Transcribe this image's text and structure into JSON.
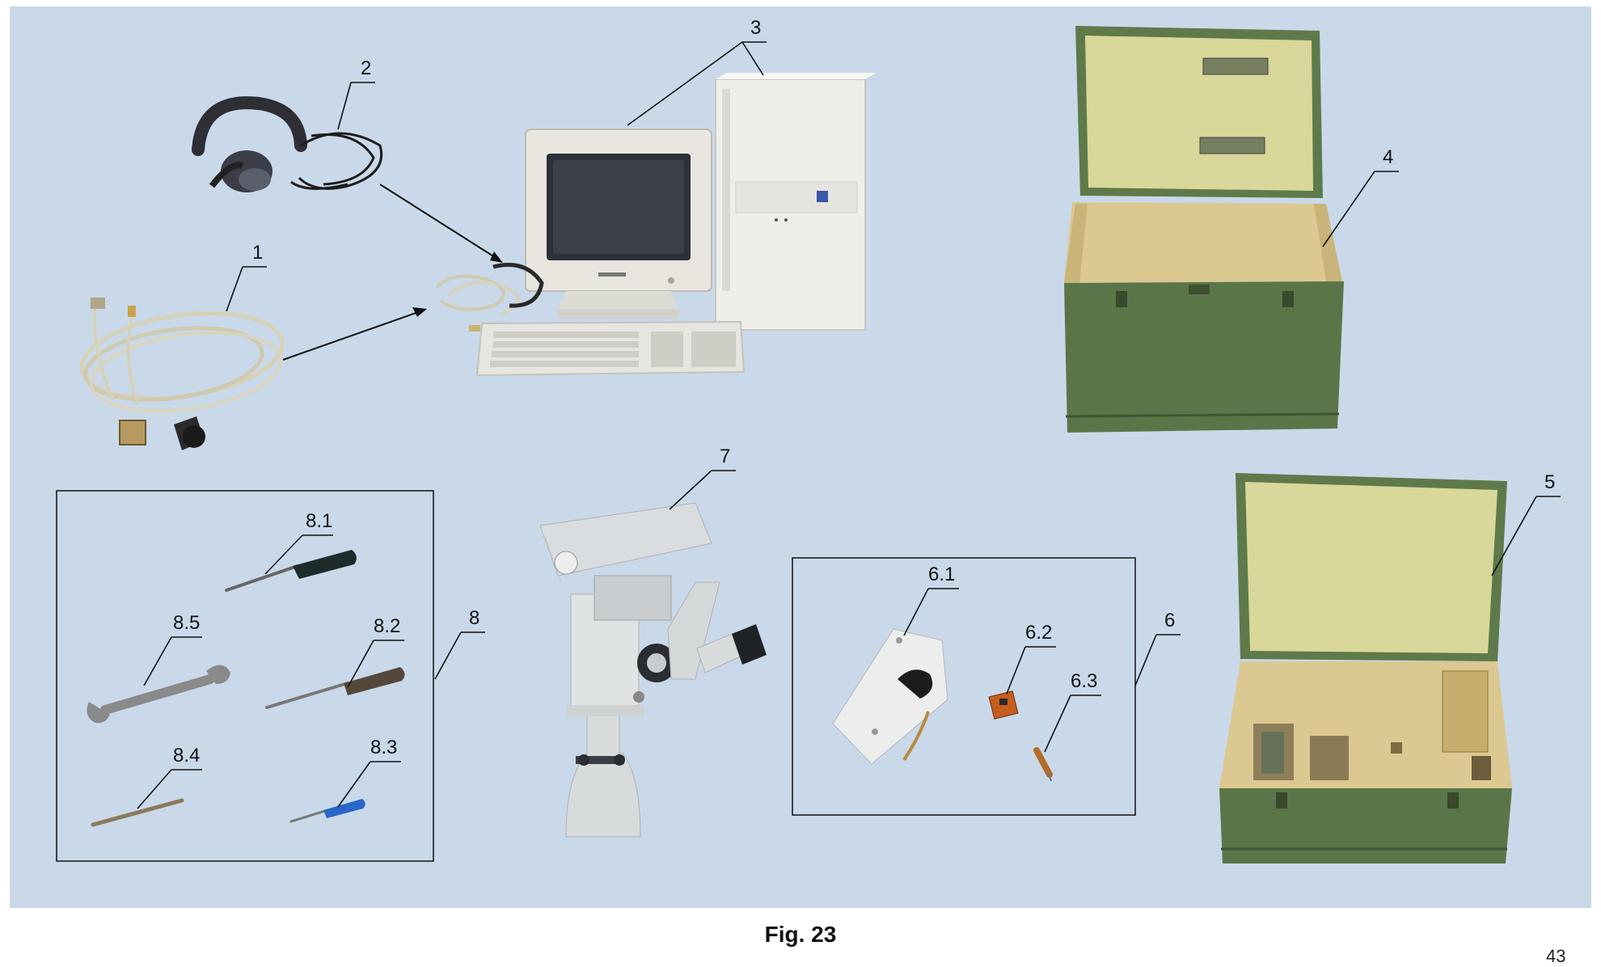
{
  "callouts": {
    "c1": "1",
    "c2": "2",
    "c3": "3",
    "c4": "4",
    "c5": "5",
    "c6": "6",
    "c6_1": "6.1",
    "c6_2": "6.2",
    "c6_3": "6.3",
    "c7": "7",
    "c8": "8",
    "c8_1": "8.1",
    "c8_2": "8.2",
    "c8_3": "8.3",
    "c8_4": "8.4",
    "c8_5": "8.5"
  },
  "caption": "Fig. 23",
  "page_number": "43",
  "colors": {
    "panel_background": "#c9d9e9",
    "case_green": "#5e7a4a",
    "plywood": "#d9d79a",
    "computer_white": "#eeeeea",
    "screwdriver_blue": "#2b66c9"
  },
  "items": [
    {
      "id": "1",
      "icon": "cable-assembly"
    },
    {
      "id": "2",
      "icon": "headset"
    },
    {
      "id": "3",
      "icon": "desktop-computer"
    },
    {
      "id": "4",
      "icon": "open-crate-green"
    },
    {
      "id": "5",
      "icon": "open-crate-with-inserts"
    },
    {
      "id": "6",
      "icon": "spare-parts-kit"
    },
    {
      "id": "7",
      "icon": "optical-device-on-stand"
    },
    {
      "id": "8",
      "icon": "tool-set"
    }
  ]
}
